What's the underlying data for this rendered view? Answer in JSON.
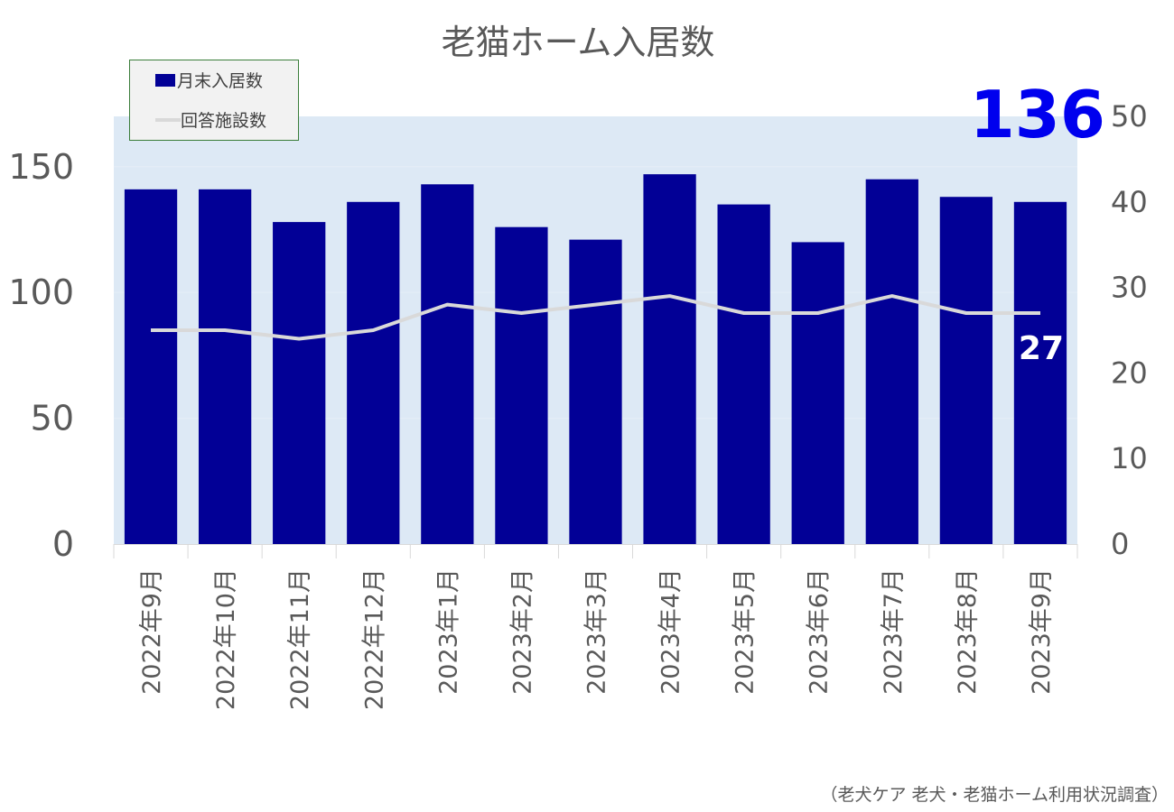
{
  "chart_data": {
    "type": "bar",
    "title": "老猫ホーム入居数",
    "categories": [
      "2022年9月",
      "2022年10月",
      "2022年11月",
      "2022年12月",
      "2023年1月",
      "2023年2月",
      "2023年3月",
      "2023年4月",
      "2023年5月",
      "2023年6月",
      "2023年7月",
      "2023年8月",
      "2023年9月"
    ],
    "series": [
      {
        "name": "月末入居数",
        "type": "bar",
        "axis": "left",
        "color": "#020096",
        "values": [
          141,
          141,
          128,
          136,
          143,
          126,
          121,
          147,
          135,
          120,
          145,
          138,
          136
        ]
      },
      {
        "name": "回答施設数",
        "type": "line",
        "axis": "right",
        "color": "#d9d9d9",
        "values": [
          25,
          25,
          24,
          25,
          28,
          27,
          28,
          29,
          27,
          27,
          29,
          27,
          27
        ]
      }
    ],
    "y_left": {
      "lim": [
        0,
        170
      ],
      "ticks": [
        0,
        50,
        100,
        150
      ]
    },
    "y_right": {
      "lim": [
        0,
        50
      ],
      "ticks": [
        0,
        10,
        20,
        30,
        40,
        50
      ]
    },
    "callouts": {
      "last_bar": "136",
      "last_line": "27"
    },
    "legend_position": "top-left",
    "grid": true,
    "plot_background": "#dde9f5"
  },
  "legend": {
    "bar_label": "月末入居数",
    "line_label": "回答施設数"
  },
  "source": "（老犬ケア 老犬・老猫ホーム利用状況調査）"
}
